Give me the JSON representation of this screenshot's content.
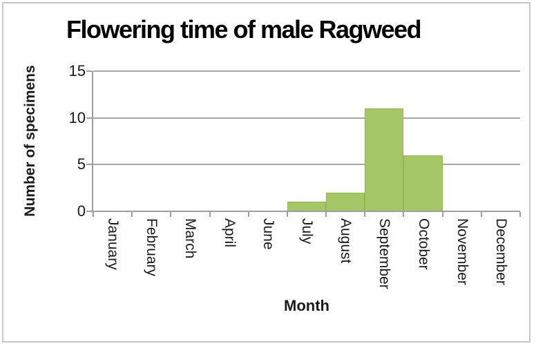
{
  "chart_data": {
    "type": "bar",
    "style": "histogram-contiguous-bars",
    "title": "Flowering time of male Ragweed",
    "xlabel": "Month",
    "ylabel": "Number of specimens",
    "categories": [
      "January",
      "February",
      "March",
      "April",
      "June",
      "July",
      "August",
      "September",
      "October",
      "November",
      "December"
    ],
    "values": [
      0,
      0,
      0,
      0,
      0,
      1,
      2,
      11,
      6,
      0,
      0
    ],
    "ylim": [
      0,
      15
    ],
    "yticks": [
      0,
      5,
      10,
      15
    ],
    "grid": "horizontal",
    "legend": "none",
    "x_tick_label_rotation_deg": 90,
    "colors": {
      "bar_fill": "#A5C667",
      "bar_edge": "#95B551",
      "gridline": "#A6A6A6",
      "axis_line": "#9E9E9E",
      "text": "#1A1A1A",
      "title_text": "#000000",
      "frame_border": "#C6C6C6",
      "background": "#FFFFFF"
    }
  }
}
